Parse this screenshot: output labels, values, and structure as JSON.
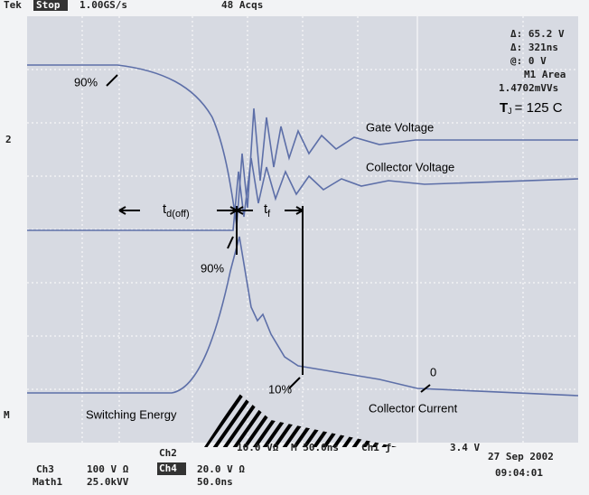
{
  "header": {
    "brand": "Tek",
    "state": "Stop",
    "rate": "1.00GS/s",
    "acqs": "48 Acqs"
  },
  "measurements": [
    "Δ: 65.2 V",
    "Δ: 321ns",
    "@: 0 V",
    "M1 Area",
    "1.4702mVVs"
  ],
  "temperature": {
    "symbol": "T",
    "subscript": "J",
    "text": "= 125   C"
  },
  "channel_markers": [
    "2",
    "M"
  ],
  "annotations": {
    "gate_voltage": "Gate Voltage",
    "collector_voltage": "Collector Voltage",
    "collector_current": "Collector Current",
    "switching_energy": "Switching Energy",
    "top_90": "90%",
    "mid_90": "90%",
    "low_10": "10%",
    "zero": "0",
    "td_off": {
      "symbol": "t",
      "subscript": "d(off)"
    },
    "tf": {
      "symbol": "t",
      "subscript": "f"
    }
  },
  "footer": {
    "ch2": "Ch2",
    "ch2_scale": "10.0 VΩ",
    "timebase": "M 50.0ns",
    "trigger": "Ch1 ƒ",
    "trigger_level": "3.4 V",
    "ch3": "Ch3",
    "ch3_scale": "100 V Ω",
    "ch4": "Ch4",
    "ch4_scale": "20.0 V Ω",
    "math": "Math1",
    "math_scale": "25.0kVV",
    "math_time": "50.0ns",
    "date": "27 Sep 2002",
    "time": "09:04:01"
  }
}
